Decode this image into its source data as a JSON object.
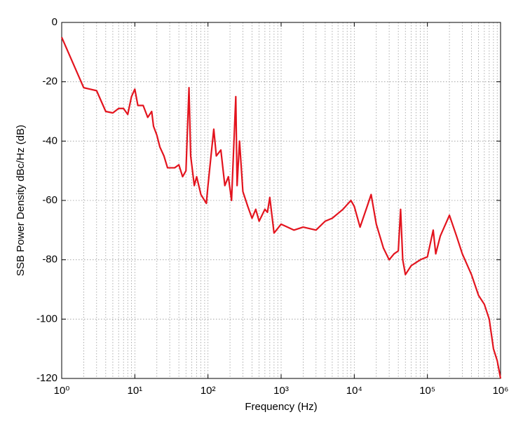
{
  "chart_data": {
    "type": "line",
    "xlabel": "Frequency (Hz)",
    "ylabel": "SSB Power Density dBc/Hz (dB)",
    "xscale": "log",
    "grid": true,
    "xlim": [
      1,
      1000000
    ],
    "ylim": [
      -120,
      0
    ],
    "xticks": [
      {
        "value": 1,
        "label": "10⁰"
      },
      {
        "value": 10,
        "label": "10¹"
      },
      {
        "value": 100,
        "label": "10²"
      },
      {
        "value": 1000,
        "label": "10³"
      },
      {
        "value": 10000,
        "label": "10⁴"
      },
      {
        "value": 100000,
        "label": "10⁵"
      },
      {
        "value": 1000000,
        "label": "10⁶"
      }
    ],
    "yticks": [
      -120,
      -100,
      -80,
      -60,
      -40,
      -20,
      0
    ],
    "series": [
      {
        "color": "#e3141e",
        "x": [
          1,
          2,
          3,
          4,
          5,
          6,
          7,
          8,
          9,
          10,
          11,
          13,
          15,
          17,
          18,
          20,
          22,
          25,
          28,
          35,
          40,
          45,
          50,
          55,
          58,
          65,
          70,
          80,
          95,
          100,
          110,
          120,
          130,
          150,
          170,
          190,
          210,
          240,
          250,
          270,
          300,
          350,
          400,
          450,
          500,
          600,
          650,
          700,
          800,
          1000,
          1500,
          2000,
          3000,
          4000,
          5000,
          7000,
          9000,
          10000,
          12000,
          15000,
          17000,
          20000,
          25000,
          30000,
          35000,
          40000,
          43000,
          46000,
          50000,
          60000,
          80000,
          100000,
          120000,
          130000,
          150000,
          200000,
          250000,
          300000,
          400000,
          500000,
          600000,
          700000,
          800000,
          900000,
          1000000
        ],
        "values": [
          -5,
          -22,
          -23,
          -30,
          -30.5,
          -29,
          -29,
          -31,
          -25,
          -22.5,
          -28,
          -28,
          -32,
          -30,
          -35,
          -38,
          -42,
          -45,
          -49,
          -49,
          -48,
          -52,
          -50,
          -22,
          -45,
          -55,
          -52,
          -58,
          -61,
          -55,
          -45,
          -36,
          -45,
          -43,
          -55,
          -52,
          -60,
          -25,
          -55,
          -40,
          -57,
          -62,
          -66,
          -63,
          -67,
          -63,
          -64,
          -59,
          -71,
          -68,
          -70,
          -69,
          -70,
          -67,
          -66,
          -63,
          -60,
          -62,
          -69,
          -62,
          -58,
          -68,
          -76,
          -80,
          -78,
          -77,
          -63,
          -80,
          -85,
          -82,
          -80,
          -79,
          -70,
          -78,
          -72,
          -65,
          -72,
          -78,
          -85,
          -92,
          -95,
          -100,
          -110,
          -114,
          -120
        ]
      }
    ]
  }
}
